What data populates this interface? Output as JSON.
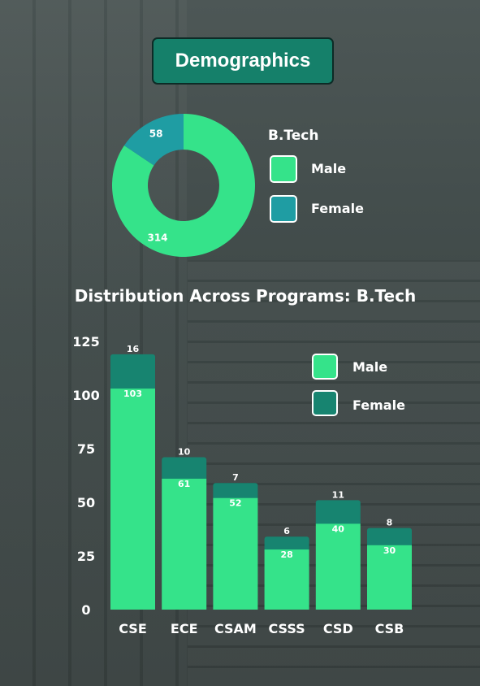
{
  "header": {
    "title": "Demographics"
  },
  "colors": {
    "male": "#35e38a",
    "female_donut": "#1f9da3",
    "female_bar": "#178470"
  },
  "legend": {
    "male": "Male",
    "female": "Female"
  },
  "chart_data": [
    {
      "type": "pie",
      "title": "B.Tech",
      "labels": [
        "Male",
        "Female"
      ],
      "values": [
        314,
        58
      ]
    },
    {
      "type": "bar",
      "stacked": true,
      "title": "Distribution Across Programs: B.Tech",
      "categories": [
        "CSE",
        "ECE",
        "CSAM",
        "CSSS",
        "CSD",
        "CSB"
      ],
      "series": [
        {
          "name": "Male",
          "values": [
            103,
            61,
            52,
            28,
            40,
            30
          ]
        },
        {
          "name": "Female",
          "values": [
            16,
            10,
            7,
            6,
            11,
            8
          ]
        }
      ],
      "ylim": [
        0,
        125
      ],
      "yticks": [
        0,
        25,
        50,
        75,
        100,
        125
      ],
      "grid": false,
      "legend_position": "top-right"
    }
  ]
}
